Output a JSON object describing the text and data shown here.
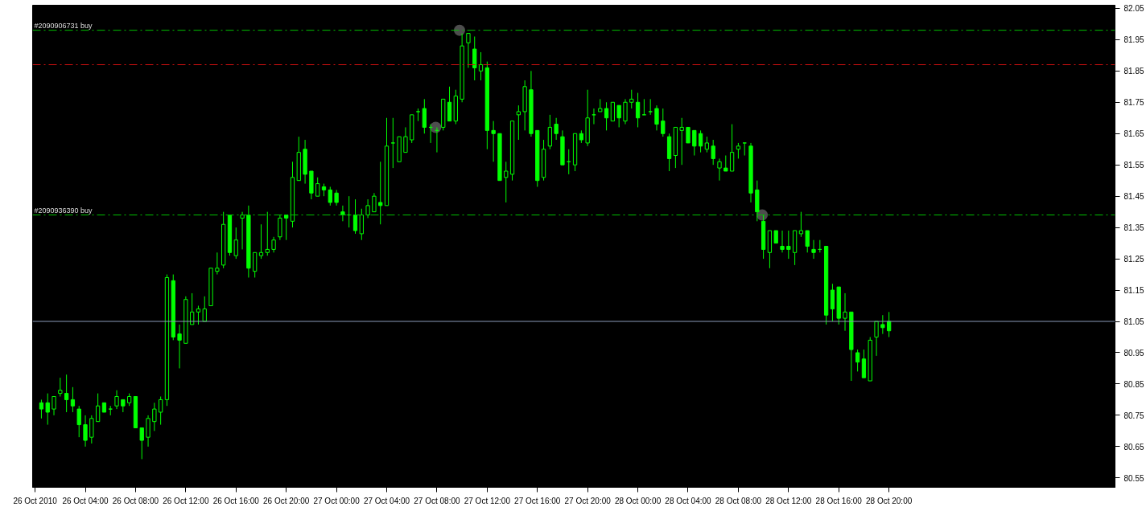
{
  "chart_data": {
    "type": "candlestick",
    "color": "#00ff00",
    "x": [
      "2010-10-26T00:30",
      "2010-10-26T01:00",
      "2010-10-26T01:30",
      "2010-10-26T02:00",
      "2010-10-26T02:30",
      "2010-10-26T03:00",
      "2010-10-26T03:30",
      "2010-10-26T04:00",
      "2010-10-26T04:30",
      "2010-10-26T05:00",
      "2010-10-26T05:30",
      "2010-10-26T06:00",
      "2010-10-26T06:30",
      "2010-10-26T07:00",
      "2010-10-26T07:30",
      "2010-10-26T08:00",
      "2010-10-26T08:30",
      "2010-10-26T09:00",
      "2010-10-26T09:30",
      "2010-10-26T10:00",
      "2010-10-26T10:30",
      "2010-10-26T11:00",
      "2010-10-26T11:30",
      "2010-10-26T12:00",
      "2010-10-26T12:30",
      "2010-10-26T13:00",
      "2010-10-26T13:30",
      "2010-10-26T14:00",
      "2010-10-26T14:30",
      "2010-10-26T15:00",
      "2010-10-26T15:30",
      "2010-10-26T16:00",
      "2010-10-26T16:30",
      "2010-10-26T17:00",
      "2010-10-26T17:30",
      "2010-10-26T18:00",
      "2010-10-26T18:30",
      "2010-10-26T19:00",
      "2010-10-26T19:30",
      "2010-10-26T20:00",
      "2010-10-26T20:30",
      "2010-10-26T21:00",
      "2010-10-26T21:30",
      "2010-10-26T22:00",
      "2010-10-26T22:30",
      "2010-10-26T23:00",
      "2010-10-26T23:30",
      "2010-10-27T00:00",
      "2010-10-27T00:30",
      "2010-10-27T01:00",
      "2010-10-27T01:30",
      "2010-10-27T02:00",
      "2010-10-27T02:30",
      "2010-10-27T03:00",
      "2010-10-27T03:30",
      "2010-10-27T04:00",
      "2010-10-27T04:30",
      "2010-10-27T05:00",
      "2010-10-27T05:30",
      "2010-10-27T06:00",
      "2010-10-27T06:30",
      "2010-10-27T07:00",
      "2010-10-27T07:30",
      "2010-10-27T08:00",
      "2010-10-27T08:30",
      "2010-10-27T09:00",
      "2010-10-27T09:30",
      "2010-10-27T10:00",
      "2010-10-27T10:30",
      "2010-10-27T11:00",
      "2010-10-27T11:30",
      "2010-10-27T12:00",
      "2010-10-27T12:30",
      "2010-10-27T13:00",
      "2010-10-27T13:30",
      "2010-10-27T14:00",
      "2010-10-27T14:30",
      "2010-10-27T15:00",
      "2010-10-27T15:30",
      "2010-10-27T16:00",
      "2010-10-27T16:30",
      "2010-10-27T17:00",
      "2010-10-27T17:30",
      "2010-10-27T18:00",
      "2010-10-27T18:30",
      "2010-10-27T19:00",
      "2010-10-27T19:30",
      "2010-10-27T20:00",
      "2010-10-27T20:30",
      "2010-10-27T21:00",
      "2010-10-27T21:30",
      "2010-10-27T22:00",
      "2010-10-27T22:30",
      "2010-10-27T23:00",
      "2010-10-27T23:30",
      "2010-10-28T00:00",
      "2010-10-28T00:30",
      "2010-10-28T01:00",
      "2010-10-28T01:30",
      "2010-10-28T02:00",
      "2010-10-28T02:30",
      "2010-10-28T03:00",
      "2010-10-28T03:30",
      "2010-10-28T04:00",
      "2010-10-28T04:30",
      "2010-10-28T05:00",
      "2010-10-28T05:30",
      "2010-10-28T06:00",
      "2010-10-28T06:30",
      "2010-10-28T07:00",
      "2010-10-28T07:30",
      "2010-10-28T08:00",
      "2010-10-28T08:30",
      "2010-10-28T09:00",
      "2010-10-28T09:30",
      "2010-10-28T10:00",
      "2010-10-28T10:30",
      "2010-10-28T11:00",
      "2010-10-28T11:30",
      "2010-10-28T12:00",
      "2010-10-28T12:30",
      "2010-10-28T13:00",
      "2010-10-28T13:30",
      "2010-10-28T14:00",
      "2010-10-28T14:30",
      "2010-10-28T15:00",
      "2010-10-28T15:30",
      "2010-10-28T16:00",
      "2010-10-28T16:30",
      "2010-10-28T17:00",
      "2010-10-28T17:30",
      "2010-10-28T18:00",
      "2010-10-28T18:30",
      "2010-10-28T19:00",
      "2010-10-28T19:30",
      "2010-10-28T20:00"
    ],
    "ohlc": [
      [
        80.79,
        80.8,
        80.74,
        80.77
      ],
      [
        80.79,
        80.82,
        80.72,
        80.76
      ],
      [
        80.77,
        80.81,
        80.75,
        80.81
      ],
      [
        80.82,
        80.87,
        80.81,
        80.83
      ],
      [
        80.82,
        80.88,
        80.76,
        80.8
      ],
      [
        80.8,
        80.84,
        80.76,
        80.78
      ],
      [
        80.77,
        80.78,
        80.68,
        80.72
      ],
      [
        80.72,
        80.75,
        80.65,
        80.67
      ],
      [
        80.68,
        80.75,
        80.66,
        80.74
      ],
      [
        80.73,
        80.82,
        80.73,
        80.78
      ],
      [
        80.79,
        80.79,
        80.76,
        80.76
      ],
      [
        80.77,
        80.78,
        80.75,
        80.77
      ],
      [
        80.78,
        80.83,
        80.77,
        80.81
      ],
      [
        80.8,
        80.8,
        80.76,
        80.78
      ],
      [
        80.79,
        80.82,
        80.78,
        80.81
      ],
      [
        80.81,
        80.81,
        80.71,
        80.71
      ],
      [
        80.71,
        80.71,
        80.61,
        80.67
      ],
      [
        80.68,
        80.75,
        80.65,
        80.74
      ],
      [
        80.73,
        80.79,
        80.7,
        80.77
      ],
      [
        80.76,
        80.81,
        80.72,
        80.8
      ],
      [
        80.8,
        81.2,
        80.78,
        81.19
      ],
      [
        81.18,
        81.2,
        80.99,
        81.0
      ],
      [
        81.01,
        81.04,
        80.9,
        80.99
      ],
      [
        80.98,
        81.13,
        80.98,
        81.12
      ],
      [
        81.04,
        81.14,
        81.04,
        81.08
      ],
      [
        81.08,
        81.1,
        81.04,
        81.09
      ],
      [
        81.05,
        81.13,
        81.05,
        81.09
      ],
      [
        81.1,
        81.22,
        81.1,
        81.22
      ],
      [
        81.21,
        81.27,
        81.2,
        81.22
      ],
      [
        81.23,
        81.4,
        81.22,
        81.36
      ],
      [
        81.39,
        81.39,
        81.26,
        81.27
      ],
      [
        81.26,
        81.35,
        81.25,
        81.31
      ],
      [
        81.38,
        81.4,
        81.28,
        81.39
      ],
      [
        81.39,
        81.42,
        81.19,
        81.22
      ],
      [
        81.21,
        81.27,
        81.19,
        81.27
      ],
      [
        81.26,
        81.36,
        81.25,
        81.27
      ],
      [
        81.27,
        81.4,
        81.26,
        81.28
      ],
      [
        81.28,
        81.32,
        81.27,
        81.31
      ],
      [
        81.32,
        81.39,
        81.31,
        81.38
      ],
      [
        81.39,
        81.39,
        81.31,
        81.38
      ],
      [
        81.37,
        81.56,
        81.35,
        81.51
      ],
      [
        81.5,
        81.64,
        81.5,
        81.59
      ],
      [
        81.6,
        81.63,
        81.49,
        81.52
      ],
      [
        81.53,
        81.53,
        81.44,
        81.46
      ],
      [
        81.45,
        81.51,
        81.45,
        81.49
      ],
      [
        81.48,
        81.49,
        81.45,
        81.47
      ],
      [
        81.47,
        81.48,
        81.42,
        81.43
      ],
      [
        81.46,
        81.47,
        81.42,
        81.43
      ],
      [
        81.4,
        81.42,
        81.37,
        81.39
      ],
      [
        81.39,
        81.45,
        81.35,
        81.39
      ],
      [
        81.39,
        81.44,
        81.33,
        81.34
      ],
      [
        81.33,
        81.41,
        81.31,
        81.39
      ],
      [
        81.39,
        81.44,
        81.38,
        81.42
      ],
      [
        81.4,
        81.46,
        81.4,
        81.45
      ],
      [
        81.43,
        81.56,
        81.36,
        81.42
      ],
      [
        81.42,
        81.7,
        81.42,
        81.61
      ],
      [
        81.62,
        81.7,
        81.54,
        81.62
      ],
      [
        81.56,
        81.64,
        81.56,
        81.64
      ],
      [
        81.59,
        81.67,
        81.59,
        81.64
      ],
      [
        81.63,
        81.71,
        81.62,
        81.71
      ],
      [
        81.72,
        81.73,
        81.69,
        81.72
      ],
      [
        81.73,
        81.76,
        81.65,
        81.67
      ],
      [
        81.67,
        81.68,
        81.62,
        81.67
      ],
      [
        81.66,
        81.67,
        81.59,
        81.66
      ],
      [
        81.67,
        81.76,
        81.66,
        81.76
      ],
      [
        81.75,
        81.8,
        81.69,
        81.69
      ],
      [
        81.69,
        81.79,
        81.68,
        81.77
      ],
      [
        81.76,
        81.97,
        81.75,
        81.93
      ],
      [
        81.94,
        81.97,
        81.86,
        81.97
      ],
      [
        81.92,
        81.96,
        81.82,
        81.86
      ],
      [
        81.85,
        81.91,
        81.82,
        81.87
      ],
      [
        81.86,
        81.88,
        81.6,
        81.66
      ],
      [
        81.66,
        81.69,
        81.56,
        81.65
      ],
      [
        81.65,
        81.65,
        81.5,
        81.5
      ],
      [
        81.51,
        81.56,
        81.43,
        81.53
      ],
      [
        81.52,
        81.69,
        81.5,
        81.69
      ],
      [
        81.71,
        81.74,
        81.63,
        81.72
      ],
      [
        81.72,
        81.82,
        81.66,
        81.8
      ],
      [
        81.79,
        81.85,
        81.64,
        81.65
      ],
      [
        81.66,
        81.66,
        81.48,
        81.5
      ],
      [
        81.51,
        81.63,
        81.5,
        81.6
      ],
      [
        81.61,
        81.71,
        81.6,
        81.67
      ],
      [
        81.68,
        81.7,
        81.63,
        81.65
      ],
      [
        81.64,
        81.66,
        81.55,
        81.55
      ],
      [
        81.56,
        81.6,
        81.52,
        81.56
      ],
      [
        81.55,
        81.65,
        81.53,
        81.65
      ],
      [
        81.65,
        81.66,
        81.62,
        81.63
      ],
      [
        81.62,
        81.79,
        81.61,
        81.7
      ],
      [
        81.71,
        81.73,
        81.68,
        81.71
      ],
      [
        81.72,
        81.76,
        81.72,
        81.73
      ],
      [
        81.73,
        81.75,
        81.66,
        81.7
      ],
      [
        81.69,
        81.75,
        81.69,
        81.75
      ],
      [
        81.74,
        81.74,
        81.67,
        81.7
      ],
      [
        81.69,
        81.76,
        81.68,
        81.75
      ],
      [
        81.75,
        81.79,
        81.73,
        81.76
      ],
      [
        81.75,
        81.78,
        81.67,
        81.7
      ],
      [
        81.71,
        81.76,
        81.71,
        81.71
      ],
      [
        81.72,
        81.76,
        81.71,
        81.72
      ],
      [
        81.73,
        81.74,
        81.66,
        81.68
      ],
      [
        81.69,
        81.73,
        81.64,
        81.65
      ],
      [
        81.64,
        81.65,
        81.53,
        81.57
      ],
      [
        81.58,
        81.67,
        81.54,
        81.67
      ],
      [
        81.66,
        81.7,
        81.55,
        81.67
      ],
      [
        81.67,
        81.67,
        81.62,
        81.62
      ],
      [
        81.66,
        81.66,
        81.58,
        81.61
      ],
      [
        81.65,
        81.66,
        81.59,
        81.61
      ],
      [
        81.6,
        81.64,
        81.59,
        81.62
      ],
      [
        81.61,
        81.63,
        81.55,
        81.57
      ],
      [
        81.54,
        81.57,
        81.5,
        81.56
      ],
      [
        81.54,
        81.58,
        81.53,
        81.53
      ],
      [
        81.53,
        81.68,
        81.53,
        81.59
      ],
      [
        81.6,
        81.62,
        81.57,
        81.61
      ],
      [
        81.62,
        81.62,
        81.58,
        81.62
      ],
      [
        81.61,
        81.62,
        81.43,
        81.46
      ],
      [
        81.47,
        81.5,
        81.37,
        81.4
      ],
      [
        81.37,
        81.39,
        81.25,
        81.28
      ],
      [
        81.27,
        81.34,
        81.22,
        81.34
      ],
      [
        81.34,
        81.34,
        81.3,
        81.3
      ],
      [
        81.29,
        81.34,
        81.27,
        81.28
      ],
      [
        81.29,
        81.34,
        81.25,
        81.28
      ],
      [
        81.27,
        81.34,
        81.23,
        81.34
      ],
      [
        81.33,
        81.4,
        81.32,
        81.34
      ],
      [
        81.34,
        81.34,
        81.27,
        81.29
      ],
      [
        81.28,
        81.31,
        81.25,
        81.27
      ],
      [
        81.28,
        81.31,
        81.27,
        81.28
      ],
      [
        81.29,
        81.29,
        81.04,
        81.07
      ],
      [
        81.15,
        81.17,
        81.05,
        81.09
      ],
      [
        81.16,
        81.16,
        81.04,
        81.06
      ],
      [
        81.06,
        81.14,
        81.02,
        81.08
      ],
      [
        81.08,
        81.08,
        80.86,
        80.96
      ],
      [
        80.95,
        80.96,
        80.89,
        80.92
      ],
      [
        80.93,
        80.96,
        80.87,
        80.87
      ],
      [
        80.86,
        81.0,
        80.86,
        80.99
      ],
      [
        81.0,
        81.05,
        80.94,
        81.05
      ],
      [
        81.04,
        81.07,
        81.01,
        81.03
      ],
      [
        81.05,
        81.08,
        81.0,
        81.02
      ]
    ],
    "series": [
      {
        "type": "scatter",
        "color": "#8c8c8c",
        "marker": "circle",
        "x": [
          "2010-10-27T07:54",
          "2010-10-27T09:48",
          "2010-10-28T09:54"
        ],
        "values": [
          81.67,
          81.98,
          81.39
        ]
      }
    ],
    "xlim": [
      "2010-10-25T23:48",
      "2010-10-29T14:00"
    ],
    "ylim": [
      80.52,
      82.06
    ],
    "xticks": [
      {
        "value": "2010-10-26T00:00",
        "label": "26 Oct 2010"
      },
      {
        "value": "2010-10-26T04:00",
        "label": "26 Oct 04:00"
      },
      {
        "value": "2010-10-26T08:00",
        "label": "26 Oct 08:00"
      },
      {
        "value": "2010-10-26T12:00",
        "label": "26 Oct 12:00"
      },
      {
        "value": "2010-10-26T16:00",
        "label": "26 Oct 16:00"
      },
      {
        "value": "2010-10-26T20:00",
        "label": "26 Oct 20:00"
      },
      {
        "value": "2010-10-27T00:00",
        "label": "27 Oct 00:00"
      },
      {
        "value": "2010-10-27T04:00",
        "label": "27 Oct 04:00"
      },
      {
        "value": "2010-10-27T08:00",
        "label": "27 Oct 08:00"
      },
      {
        "value": "2010-10-27T12:00",
        "label": "27 Oct 12:00"
      },
      {
        "value": "2010-10-27T16:00",
        "label": "27 Oct 16:00"
      },
      {
        "value": "2010-10-27T20:00",
        "label": "27 Oct 20:00"
      },
      {
        "value": "2010-10-28T00:00",
        "label": "28 Oct 00:00"
      },
      {
        "value": "2010-10-28T04:00",
        "label": "28 Oct 04:00"
      },
      {
        "value": "2010-10-28T08:00",
        "label": "28 Oct 08:00"
      },
      {
        "value": "2010-10-28T12:00",
        "label": "28 Oct 12:00"
      },
      {
        "value": "2010-10-28T16:00",
        "label": "28 Oct 16:00"
      },
      {
        "value": "2010-10-28T20:00",
        "label": "28 Oct 20:00"
      }
    ],
    "yticks": [
      {
        "value": 80.55,
        "label": "80.55"
      },
      {
        "value": 80.65,
        "label": "80.65"
      },
      {
        "value": 80.75,
        "label": "80.75"
      },
      {
        "value": 80.85,
        "label": "80.85"
      },
      {
        "value": 80.95,
        "label": "80.95"
      },
      {
        "value": 81.05,
        "label": "81.05"
      },
      {
        "value": 81.15,
        "label": "81.15"
      },
      {
        "value": 81.25,
        "label": "81.25"
      },
      {
        "value": 81.35,
        "label": "81.35"
      },
      {
        "value": 81.45,
        "label": "81.45"
      },
      {
        "value": 81.55,
        "label": "81.55"
      },
      {
        "value": 81.65,
        "label": "81.65"
      },
      {
        "value": 81.75,
        "label": "81.75"
      },
      {
        "value": 81.85,
        "label": "81.85"
      },
      {
        "value": 81.95,
        "label": "81.95"
      },
      {
        "value": 82.05,
        "label": "82.05"
      }
    ],
    "ref_lines": [
      {
        "axis": "y",
        "value": 81.98,
        "label": "#2090906731 buy",
        "color": "#00c000",
        "line_style": "dashdot"
      },
      {
        "axis": "y",
        "value": 81.87,
        "label": null,
        "color": "#d01010",
        "line_style": "dashdot"
      },
      {
        "axis": "y",
        "value": 81.39,
        "label": "#2090936390 buy",
        "color": "#00c000",
        "line_style": "dashdot"
      },
      {
        "axis": "y",
        "value": 81.05,
        "label": null,
        "color": "#8a9ab8",
        "line_style": "solid"
      }
    ],
    "grid": false
  }
}
